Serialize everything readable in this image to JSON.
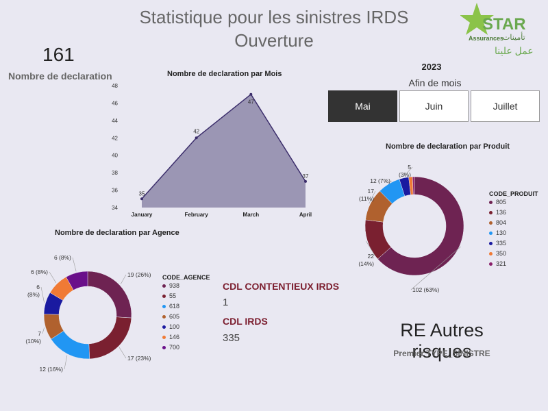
{
  "header": {
    "title_line1": "Statistique pour les sinistres IRDS",
    "title_line2": "Ouverture"
  },
  "logo": {
    "brand": "STAR",
    "tagline": "Assurances",
    "arabic_top": "تأمينات",
    "arabic_bottom": "عمل علينا",
    "color_green": "#6aa84f",
    "color_star": "#8bc34a"
  },
  "kpi": {
    "value": "161",
    "label": "Nombre de declaration"
  },
  "filter": {
    "year": "2023",
    "label": "Afin de mois",
    "options": [
      "Mai",
      "Juin",
      "Juillet"
    ],
    "selected": "Mai"
  },
  "cards": {
    "contentieux_label": "CDL CONTENTIEUX IRDS",
    "contentieux_value": "1",
    "irds_label": "CDL IRDS",
    "irds_value": "335",
    "type_value": "RE Autres risques",
    "type_label": "Premier TYPE_SINISTRE"
  },
  "chart_data": [
    {
      "type": "area",
      "title": "Nombre de declaration par Mois",
      "categories": [
        "January",
        "February",
        "March",
        "April"
      ],
      "values": [
        35,
        42,
        47,
        37
      ],
      "ylim": [
        34,
        48
      ],
      "yticks": [
        34,
        36,
        38,
        40,
        42,
        44,
        46,
        48
      ],
      "color": "#9b96b4",
      "line_color": "#3b2d6b"
    },
    {
      "type": "pie",
      "title": "Nombre de declaration par Agence",
      "legend_title": "CODE_AGENCE",
      "labels": [
        "938",
        "55",
        "618",
        "605",
        "100",
        "146",
        "700"
      ],
      "values": [
        19,
        17,
        12,
        7,
        6,
        6,
        6
      ],
      "data_labels": [
        "19 (26%)",
        "17 (23%)",
        "12 (16%)",
        "7\n(10%)",
        "6\n(8%)",
        "6 (8%)",
        "6 (8%)"
      ],
      "colors": [
        "#6e2352",
        "#7a2030",
        "#2196f3",
        "#b0612e",
        "#1a1aa0",
        "#f07a35",
        "#6a0f8a"
      ]
    },
    {
      "type": "pie",
      "title": "Nombre de declaration par Produit",
      "legend_title": "CODE_PRODUIT",
      "labels": [
        "805",
        "136",
        "804",
        "130",
        "335",
        "350",
        "321"
      ],
      "values": [
        102,
        22,
        17,
        12,
        5,
        2,
        1
      ],
      "data_labels": [
        "102 (63%)",
        "22\n(14%)",
        "17\n(11%)",
        "12 (7%)",
        "5\n(3%)",
        "",
        ""
      ],
      "colors": [
        "#6e2352",
        "#7a2030",
        "#b0612e",
        "#2196f3",
        "#1a1aa0",
        "#f07a35",
        "#8a1f6a"
      ]
    }
  ]
}
